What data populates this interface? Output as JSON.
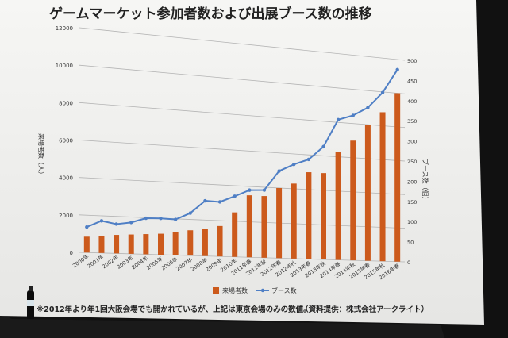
{
  "slide": {
    "title": "ゲームマーケット参加者数および出展ブース数の推移",
    "footnote": "※2012年より年1回大阪会場でも開かれているが、上記は東京会場のみの数値。",
    "source": "（資料提供：株式会社アークライト）"
  },
  "colors": {
    "screen": "#f2f2f0",
    "bar": "#cc5a1c",
    "line": "#4f7fc5",
    "text": "#333333",
    "grid": "#b4b4b4",
    "title": "#222222"
  },
  "chart_data": {
    "type": "bar+line",
    "categories": [
      "2000年",
      "2001年",
      "2002年",
      "2003年",
      "2004年",
      "2005年",
      "2006年",
      "2007年",
      "2008年",
      "2009年",
      "2010年",
      "2011年春",
      "2011年秋",
      "2012年春",
      "2012年秋",
      "2013年春",
      "2013年秋",
      "2014年春",
      "2014年秋",
      "2015年春",
      "2015年秋",
      "2016年春"
    ],
    "series": [
      {
        "name": "来場者数",
        "type": "bar",
        "axis": "left",
        "values": [
          850,
          900,
          1000,
          1050,
          1100,
          1150,
          1250,
          1400,
          1500,
          1700,
          2500,
          3500,
          3500,
          4000,
          4300,
          5000,
          5000,
          6300,
          7000,
          8000,
          8800,
          10000
        ]
      },
      {
        "name": "ブース数",
        "type": "line",
        "axis": "right",
        "values": [
          57,
          72,
          66,
          71,
          82,
          83,
          82,
          98,
          128,
          127,
          142,
          158,
          160,
          207,
          225,
          239,
          272,
          340,
          353,
          375,
          415,
          475
        ]
      }
    ],
    "ylabel_left": "来場者数（人）",
    "ylabel_right": "ブース数（個）",
    "ylim_left": [
      0,
      12000
    ],
    "ylim_right": [
      0,
      500
    ],
    "yticks_left": [
      0,
      2000,
      4000,
      6000,
      8000,
      10000,
      12000
    ],
    "yticks_right": [
      0,
      50,
      100,
      150,
      200,
      250,
      300,
      350,
      400,
      450,
      500
    ],
    "grid": true,
    "legend_position": "bottom"
  }
}
